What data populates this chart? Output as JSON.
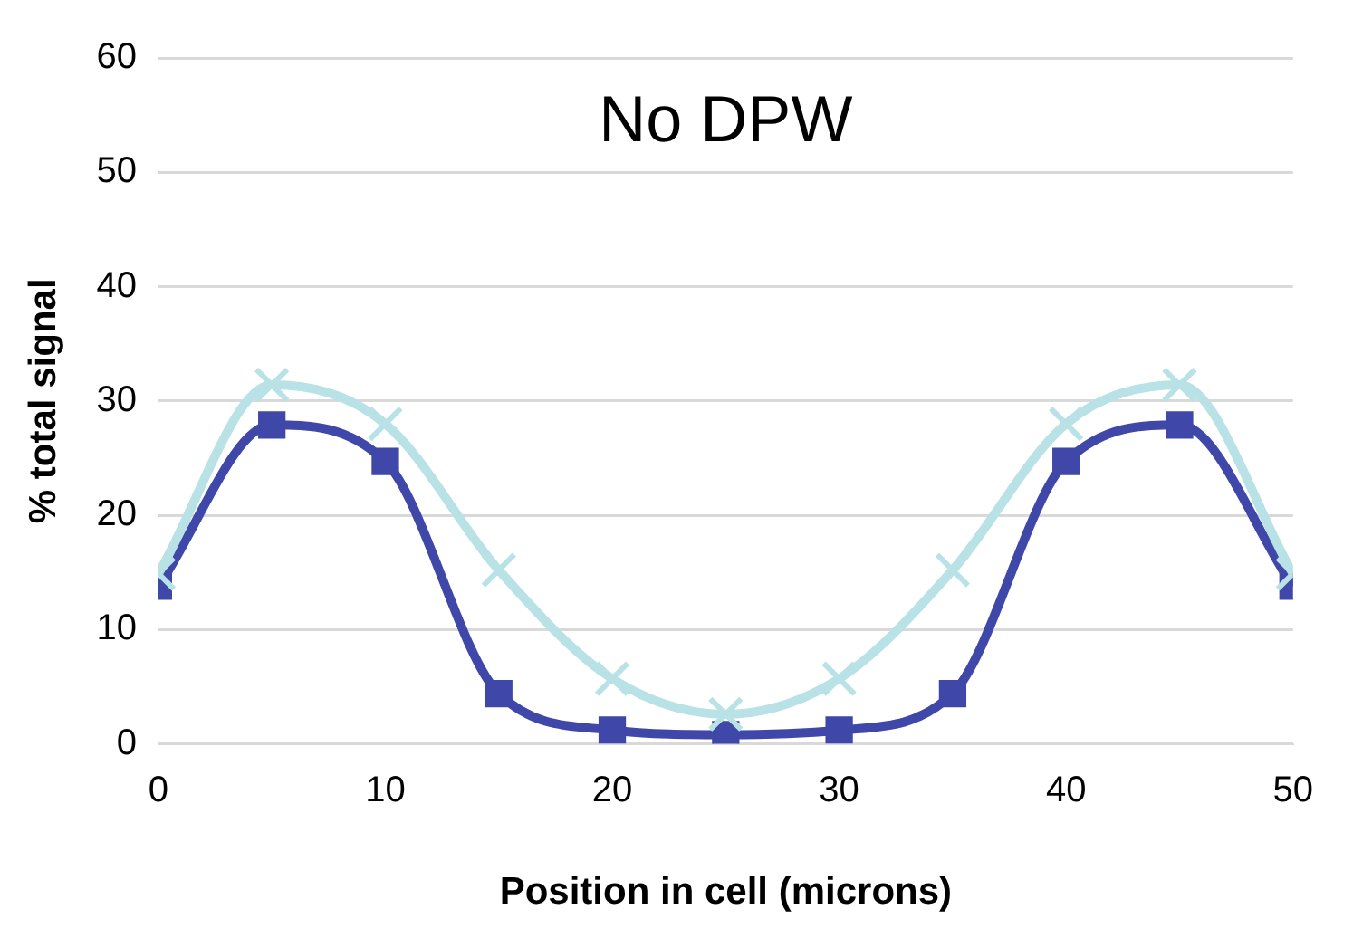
{
  "chart_data": {
    "type": "line",
    "title": "No DPW",
    "xlabel": "Position in cell (microns)",
    "ylabel": "% total signal",
    "x": [
      0,
      5,
      10,
      15,
      20,
      25,
      30,
      35,
      40,
      45,
      50
    ],
    "series": [
      {
        "color": "#3f48a8",
        "marker": "square",
        "values": [
          13.8,
          27.9,
          24.7,
          4.4,
          1.2,
          0.8,
          1.2,
          4.4,
          24.7,
          27.9,
          13.8
        ]
      },
      {
        "color": "#b8e2e6",
        "marker": "cross",
        "values": [
          14.9,
          31.4,
          28,
          15.2,
          5.7,
          2.6,
          5.7,
          15.2,
          28,
          31.4,
          14.9
        ]
      }
    ],
    "xlim": [
      0,
      50
    ],
    "xticks": [
      0,
      10,
      20,
      30,
      40,
      50
    ],
    "ylim": [
      0,
      60
    ],
    "yticks": [
      0,
      10,
      20,
      30,
      40,
      50,
      60
    ],
    "grid": "y",
    "legend": false
  }
}
